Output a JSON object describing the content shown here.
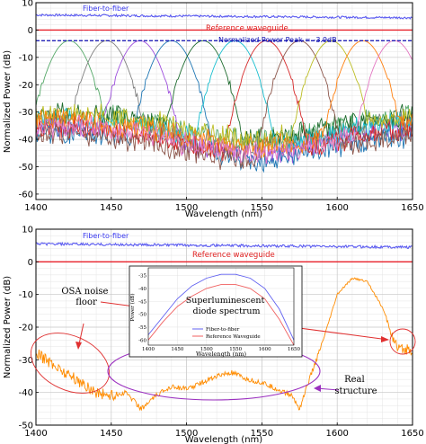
{
  "chart_data": [
    {
      "type": "line",
      "xlabel": "Wavelength (nm)",
      "ylabel": "Normalized Power (dB)",
      "xlim": [
        1400,
        1650
      ],
      "ylim": [
        -62,
        10
      ],
      "xticks": [
        1400,
        1450,
        1500,
        1550,
        1600,
        1650
      ],
      "yticks": [
        -60,
        -50,
        -40,
        -30,
        -20,
        -10,
        0,
        10
      ],
      "grid": true,
      "annotations": {
        "fiber": "Fiber-to-fiber",
        "ref": "Reference waveguide",
        "peak": "Normalized Power Peak = -3.9dB"
      },
      "reference_lines": [
        {
          "name": "Fiber-to-fiber",
          "y": 5.5,
          "color": "#5a5af0"
        },
        {
          "name": "Reference waveguide",
          "y": 0,
          "color": "#e8202a"
        },
        {
          "name": "Normalized Power Peak",
          "y": -3.9,
          "color": "#0b0bb0",
          "style": "dashed"
        }
      ],
      "series": [
        {
          "center": 1422,
          "color": "#55a868"
        },
        {
          "center": 1447,
          "color": "#7f7f7f"
        },
        {
          "center": 1469,
          "color": "#9d4edd"
        },
        {
          "center": 1490,
          "color": "#1f77b4"
        },
        {
          "center": 1511,
          "color": "#1e6b2e"
        },
        {
          "center": 1532,
          "color": "#17becf"
        },
        {
          "center": 1553,
          "color": "#d62728"
        },
        {
          "center": 1575,
          "color": "#8c564b"
        },
        {
          "center": 1596,
          "color": "#bcbd22"
        },
        {
          "center": 1617,
          "color": "#ff7f0e"
        },
        {
          "center": 1638,
          "color": "#e377c2"
        }
      ],
      "peak_level": -3.9
    },
    {
      "type": "line",
      "xlabel": "Wavelength (nm)",
      "ylabel": "Normalized Power (dB)",
      "xlim": [
        1400,
        1650
      ],
      "ylim": [
        -50,
        10
      ],
      "xticks": [
        1400,
        1450,
        1500,
        1550,
        1600,
        1650
      ],
      "yticks": [
        -50,
        -40,
        -30,
        -20,
        -10,
        0,
        10
      ],
      "grid": true,
      "annotations": {
        "fiber": "Fiber-to-fiber",
        "ref": "Reference waveguide",
        "osa": "OSA noise\nfloor",
        "real": "Real\nstructure"
      },
      "reference_lines": [
        {
          "name": "Fiber-to-fiber",
          "y": 5.5,
          "color": "#5a5af0"
        },
        {
          "name": "Reference waveguide",
          "y": 0,
          "color": "#e8202a"
        }
      ],
      "main_series": {
        "color": "#ff8c00",
        "points": [
          [
            1400,
            -28
          ],
          [
            1410,
            -31
          ],
          [
            1420,
            -34
          ],
          [
            1430,
            -37
          ],
          [
            1440,
            -40
          ],
          [
            1450,
            -41
          ],
          [
            1460,
            -40
          ],
          [
            1470,
            -45
          ],
          [
            1480,
            -41
          ],
          [
            1490,
            -38
          ],
          [
            1500,
            -39
          ],
          [
            1510,
            -37
          ],
          [
            1520,
            -35
          ],
          [
            1530,
            -34
          ],
          [
            1540,
            -36
          ],
          [
            1550,
            -37
          ],
          [
            1560,
            -39
          ],
          [
            1570,
            -41
          ],
          [
            1575,
            -45
          ],
          [
            1580,
            -38
          ],
          [
            1590,
            -25
          ],
          [
            1600,
            -10
          ],
          [
            1610,
            -5
          ],
          [
            1620,
            -6
          ],
          [
            1630,
            -14
          ],
          [
            1640,
            -27
          ],
          [
            1650,
            -27
          ]
        ]
      },
      "inset": {
        "title": "Superluminescent\ndiode spectrum",
        "ylabel": "Power (dB)",
        "xlabel": "Wavelength (nm)",
        "xlim": [
          1400,
          1650
        ],
        "ylim": [
          -62,
          -32
        ],
        "xticks": [
          1400,
          1450,
          1500,
          1550,
          1600,
          1650
        ],
        "yticks": [
          -60,
          -55,
          -50,
          -45,
          -40,
          -35
        ],
        "legend": [
          "Fiber-to-fiber",
          "Reference Waveguide"
        ],
        "series": [
          {
            "name": "Fiber-to-fiber",
            "color": "#6060f0",
            "points": [
              [
                1400,
                -58
              ],
              [
                1425,
                -51
              ],
              [
                1450,
                -44
              ],
              [
                1475,
                -39
              ],
              [
                1500,
                -36
              ],
              [
                1525,
                -34.5
              ],
              [
                1550,
                -34.5
              ],
              [
                1575,
                -36
              ],
              [
                1600,
                -40
              ],
              [
                1625,
                -48
              ],
              [
                1650,
                -60
              ]
            ]
          },
          {
            "name": "Reference Waveguide",
            "color": "#f06060",
            "points": [
              [
                1400,
                -60
              ],
              [
                1425,
                -53
              ],
              [
                1450,
                -47
              ],
              [
                1475,
                -43
              ],
              [
                1500,
                -40
              ],
              [
                1525,
                -38.5
              ],
              [
                1550,
                -38.5
              ],
              [
                1575,
                -40
              ],
              [
                1600,
                -44
              ],
              [
                1625,
                -52
              ],
              [
                1650,
                -62
              ]
            ]
          }
        ]
      }
    }
  ]
}
